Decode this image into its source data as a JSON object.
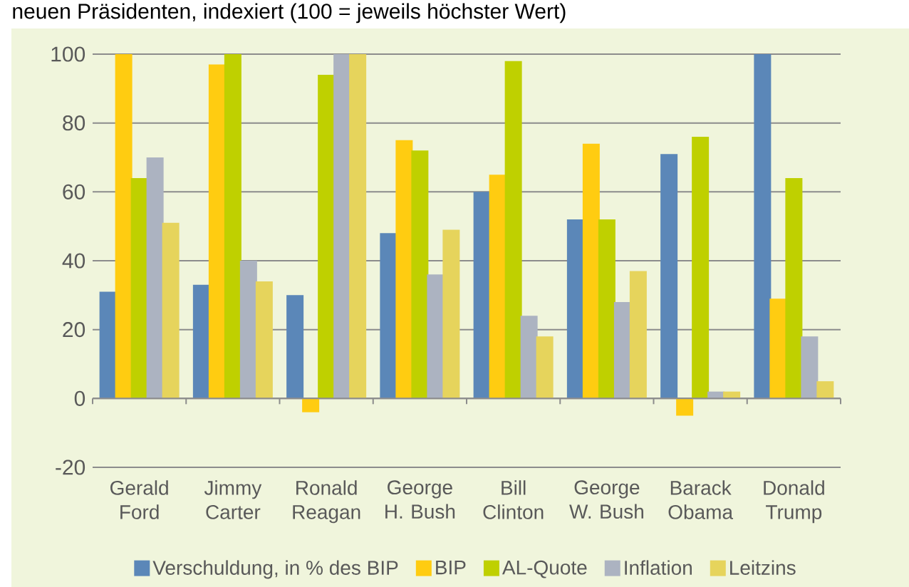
{
  "chart_data": {
    "type": "bar",
    "title": "neuen Präsidenten, indexiert (100 = jeweils höchster Wert)",
    "categories": [
      "Gerald Ford",
      "Jimmy Carter",
      "Ronald Reagan",
      "George H. Bush",
      "Bill Clinton",
      "George W. Bush",
      "Barack Obama",
      "Donald Trump"
    ],
    "series": [
      {
        "name": "Verschuldung, in % des BIP",
        "color": "#5b87b8",
        "values": [
          31,
          33,
          30,
          48,
          60,
          52,
          71,
          100
        ]
      },
      {
        "name": "BIP",
        "color": "#ffcc11",
        "values": [
          100,
          97,
          -4,
          75,
          65,
          74,
          -5,
          29
        ]
      },
      {
        "name": "AL-Quote",
        "color": "#bfd000",
        "values": [
          64,
          100,
          94,
          72,
          98,
          52,
          76,
          64
        ]
      },
      {
        "name": "Inflation",
        "color": "#acb3c1",
        "values": [
          70,
          40,
          100,
          36,
          24,
          28,
          2,
          18
        ]
      },
      {
        "name": "Leitzins",
        "color": "#e6d45c",
        "values": [
          51,
          34,
          100,
          49,
          18,
          37,
          2,
          5
        ]
      }
    ],
    "ylim": [
      -20,
      100
    ],
    "yticks": [
      -20,
      0,
      20,
      40,
      60,
      80,
      100
    ],
    "grid": "y",
    "legend": "bottom"
  }
}
